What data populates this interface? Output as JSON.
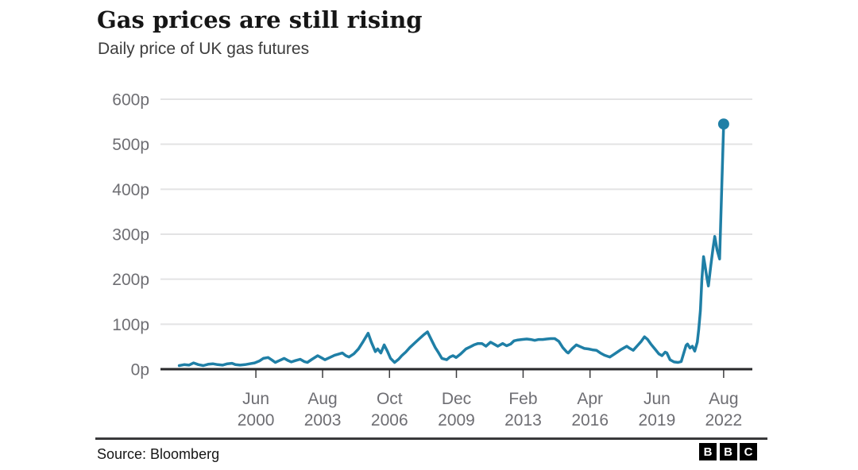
{
  "chart_data": {
    "type": "line",
    "title": "Gas prices are still rising",
    "subtitle": "Daily price of UK gas futures",
    "unit": "p",
    "grid": "horizontal",
    "legend": "none",
    "line_color": "#1f7fa6",
    "end_dot": true,
    "y_domain": [
      0,
      600
    ],
    "x_domain": [
      1995.9,
      2023.94
    ],
    "y_ticks": {
      "values": [
        600,
        500,
        400,
        300,
        200,
        100,
        0
      ],
      "suffix": "p"
    },
    "x_ticks": [
      {
        "month": "Jun",
        "year": "2000",
        "t": 2000.42
      },
      {
        "month": "Aug",
        "year": "2003",
        "t": 2003.58
      },
      {
        "month": "Oct",
        "year": "2006",
        "t": 2006.75
      },
      {
        "month": "Dec",
        "year": "2009",
        "t": 2009.92
      },
      {
        "month": "Feb",
        "year": "2013",
        "t": 2013.08
      },
      {
        "month": "Apr",
        "year": "2016",
        "t": 2016.25
      },
      {
        "month": "Jun",
        "year": "2019",
        "t": 2019.42
      },
      {
        "month": "Aug",
        "year": "2022",
        "t": 2022.58
      }
    ],
    "series": [
      {
        "name": "UK gas futures daily price (pence)",
        "points": [
          [
            1996.79,
            8
          ],
          [
            1997.02,
            10
          ],
          [
            1997.25,
            9
          ],
          [
            1997.47,
            14
          ],
          [
            1997.7,
            10
          ],
          [
            1997.93,
            8
          ],
          [
            1998.16,
            11
          ],
          [
            1998.38,
            12
          ],
          [
            1998.61,
            10
          ],
          [
            1998.84,
            9
          ],
          [
            1999.07,
            12
          ],
          [
            1999.29,
            13
          ],
          [
            1999.45,
            10
          ],
          [
            1999.67,
            9
          ],
          [
            1999.9,
            10
          ],
          [
            2000.13,
            12
          ],
          [
            2000.36,
            14
          ],
          [
            2000.58,
            18
          ],
          [
            2000.77,
            24
          ],
          [
            2001.0,
            26
          ],
          [
            2001.19,
            20
          ],
          [
            2001.34,
            15
          ],
          [
            2001.53,
            19
          ],
          [
            2001.76,
            24
          ],
          [
            2001.95,
            19
          ],
          [
            2002.1,
            16
          ],
          [
            2002.29,
            19
          ],
          [
            2002.52,
            22
          ],
          [
            2002.71,
            17
          ],
          [
            2002.86,
            15
          ],
          [
            2003.08,
            22
          ],
          [
            2003.35,
            30
          ],
          [
            2003.54,
            25
          ],
          [
            2003.69,
            21
          ],
          [
            2003.92,
            26
          ],
          [
            2004.15,
            31
          ],
          [
            2004.3,
            33
          ],
          [
            2004.52,
            36
          ],
          [
            2004.68,
            30
          ],
          [
            2004.83,
            27
          ],
          [
            2005.06,
            34
          ],
          [
            2005.28,
            45
          ],
          [
            2005.51,
            62
          ],
          [
            2005.74,
            80
          ],
          [
            2005.89,
            60
          ],
          [
            2006.08,
            39
          ],
          [
            2006.19,
            45
          ],
          [
            2006.34,
            36
          ],
          [
            2006.5,
            54
          ],
          [
            2006.65,
            40
          ],
          [
            2006.8,
            24
          ],
          [
            2006.99,
            15
          ],
          [
            2007.18,
            22
          ],
          [
            2007.33,
            30
          ],
          [
            2007.52,
            38
          ],
          [
            2007.71,
            48
          ],
          [
            2007.94,
            58
          ],
          [
            2008.17,
            68
          ],
          [
            2008.36,
            76
          ],
          [
            2008.55,
            83
          ],
          [
            2008.74,
            65
          ],
          [
            2008.92,
            48
          ],
          [
            2009.08,
            36
          ],
          [
            2009.23,
            24
          ],
          [
            2009.46,
            21
          ],
          [
            2009.61,
            27
          ],
          [
            2009.76,
            30
          ],
          [
            2009.91,
            26
          ],
          [
            2010.1,
            33
          ],
          [
            2010.37,
            45
          ],
          [
            2010.59,
            50
          ],
          [
            2010.75,
            54
          ],
          [
            2010.94,
            57
          ],
          [
            2011.13,
            57
          ],
          [
            2011.32,
            51
          ],
          [
            2011.54,
            60
          ],
          [
            2011.73,
            55
          ],
          [
            2011.88,
            51
          ],
          [
            2012.11,
            57
          ],
          [
            2012.3,
            52
          ],
          [
            2012.49,
            56
          ],
          [
            2012.65,
            63
          ],
          [
            2012.83,
            65
          ],
          [
            2013.02,
            66
          ],
          [
            2013.25,
            67
          ],
          [
            2013.44,
            66
          ],
          [
            2013.63,
            64
          ],
          [
            2013.82,
            66
          ],
          [
            2014.01,
            66
          ],
          [
            2014.2,
            67
          ],
          [
            2014.39,
            68
          ],
          [
            2014.58,
            68
          ],
          [
            2014.77,
            62
          ],
          [
            2014.96,
            48
          ],
          [
            2015.15,
            38
          ],
          [
            2015.22,
            36
          ],
          [
            2015.41,
            46
          ],
          [
            2015.6,
            54
          ],
          [
            2015.79,
            50
          ],
          [
            2015.98,
            46
          ],
          [
            2016.17,
            45
          ],
          [
            2016.36,
            43
          ],
          [
            2016.55,
            42
          ],
          [
            2016.74,
            36
          ],
          [
            2016.93,
            31
          ],
          [
            2017.12,
            28
          ],
          [
            2017.19,
            27
          ],
          [
            2017.35,
            32
          ],
          [
            2017.54,
            38
          ],
          [
            2017.73,
            44
          ],
          [
            2017.92,
            49
          ],
          [
            2017.99,
            51
          ],
          [
            2018.14,
            46
          ],
          [
            2018.3,
            42
          ],
          [
            2018.49,
            52
          ],
          [
            2018.68,
            62
          ],
          [
            2018.83,
            72
          ],
          [
            2018.98,
            66
          ],
          [
            2019.13,
            56
          ],
          [
            2019.32,
            45
          ],
          [
            2019.51,
            34
          ],
          [
            2019.66,
            30
          ],
          [
            2019.81,
            38
          ],
          [
            2019.89,
            36
          ],
          [
            2020.04,
            21
          ],
          [
            2020.23,
            16
          ],
          [
            2020.42,
            15
          ],
          [
            2020.57,
            17
          ],
          [
            2020.8,
            53
          ],
          [
            2020.87,
            56
          ],
          [
            2020.99,
            47
          ],
          [
            2021.1,
            51
          ],
          [
            2021.21,
            40
          ],
          [
            2021.33,
            60
          ],
          [
            2021.4,
            88
          ],
          [
            2021.48,
            130
          ],
          [
            2021.55,
            200
          ],
          [
            2021.63,
            250
          ],
          [
            2021.7,
            230
          ],
          [
            2021.78,
            205
          ],
          [
            2021.86,
            185
          ],
          [
            2021.97,
            230
          ],
          [
            2022.08,
            270
          ],
          [
            2022.16,
            295
          ],
          [
            2022.27,
            265
          ],
          [
            2022.39,
            245
          ],
          [
            2022.58,
            545
          ]
        ]
      }
    ],
    "latest_value_p": 545
  },
  "footer": {
    "source": "Source: Bloomberg",
    "logo_letters": [
      "B",
      "B",
      "C"
    ]
  }
}
